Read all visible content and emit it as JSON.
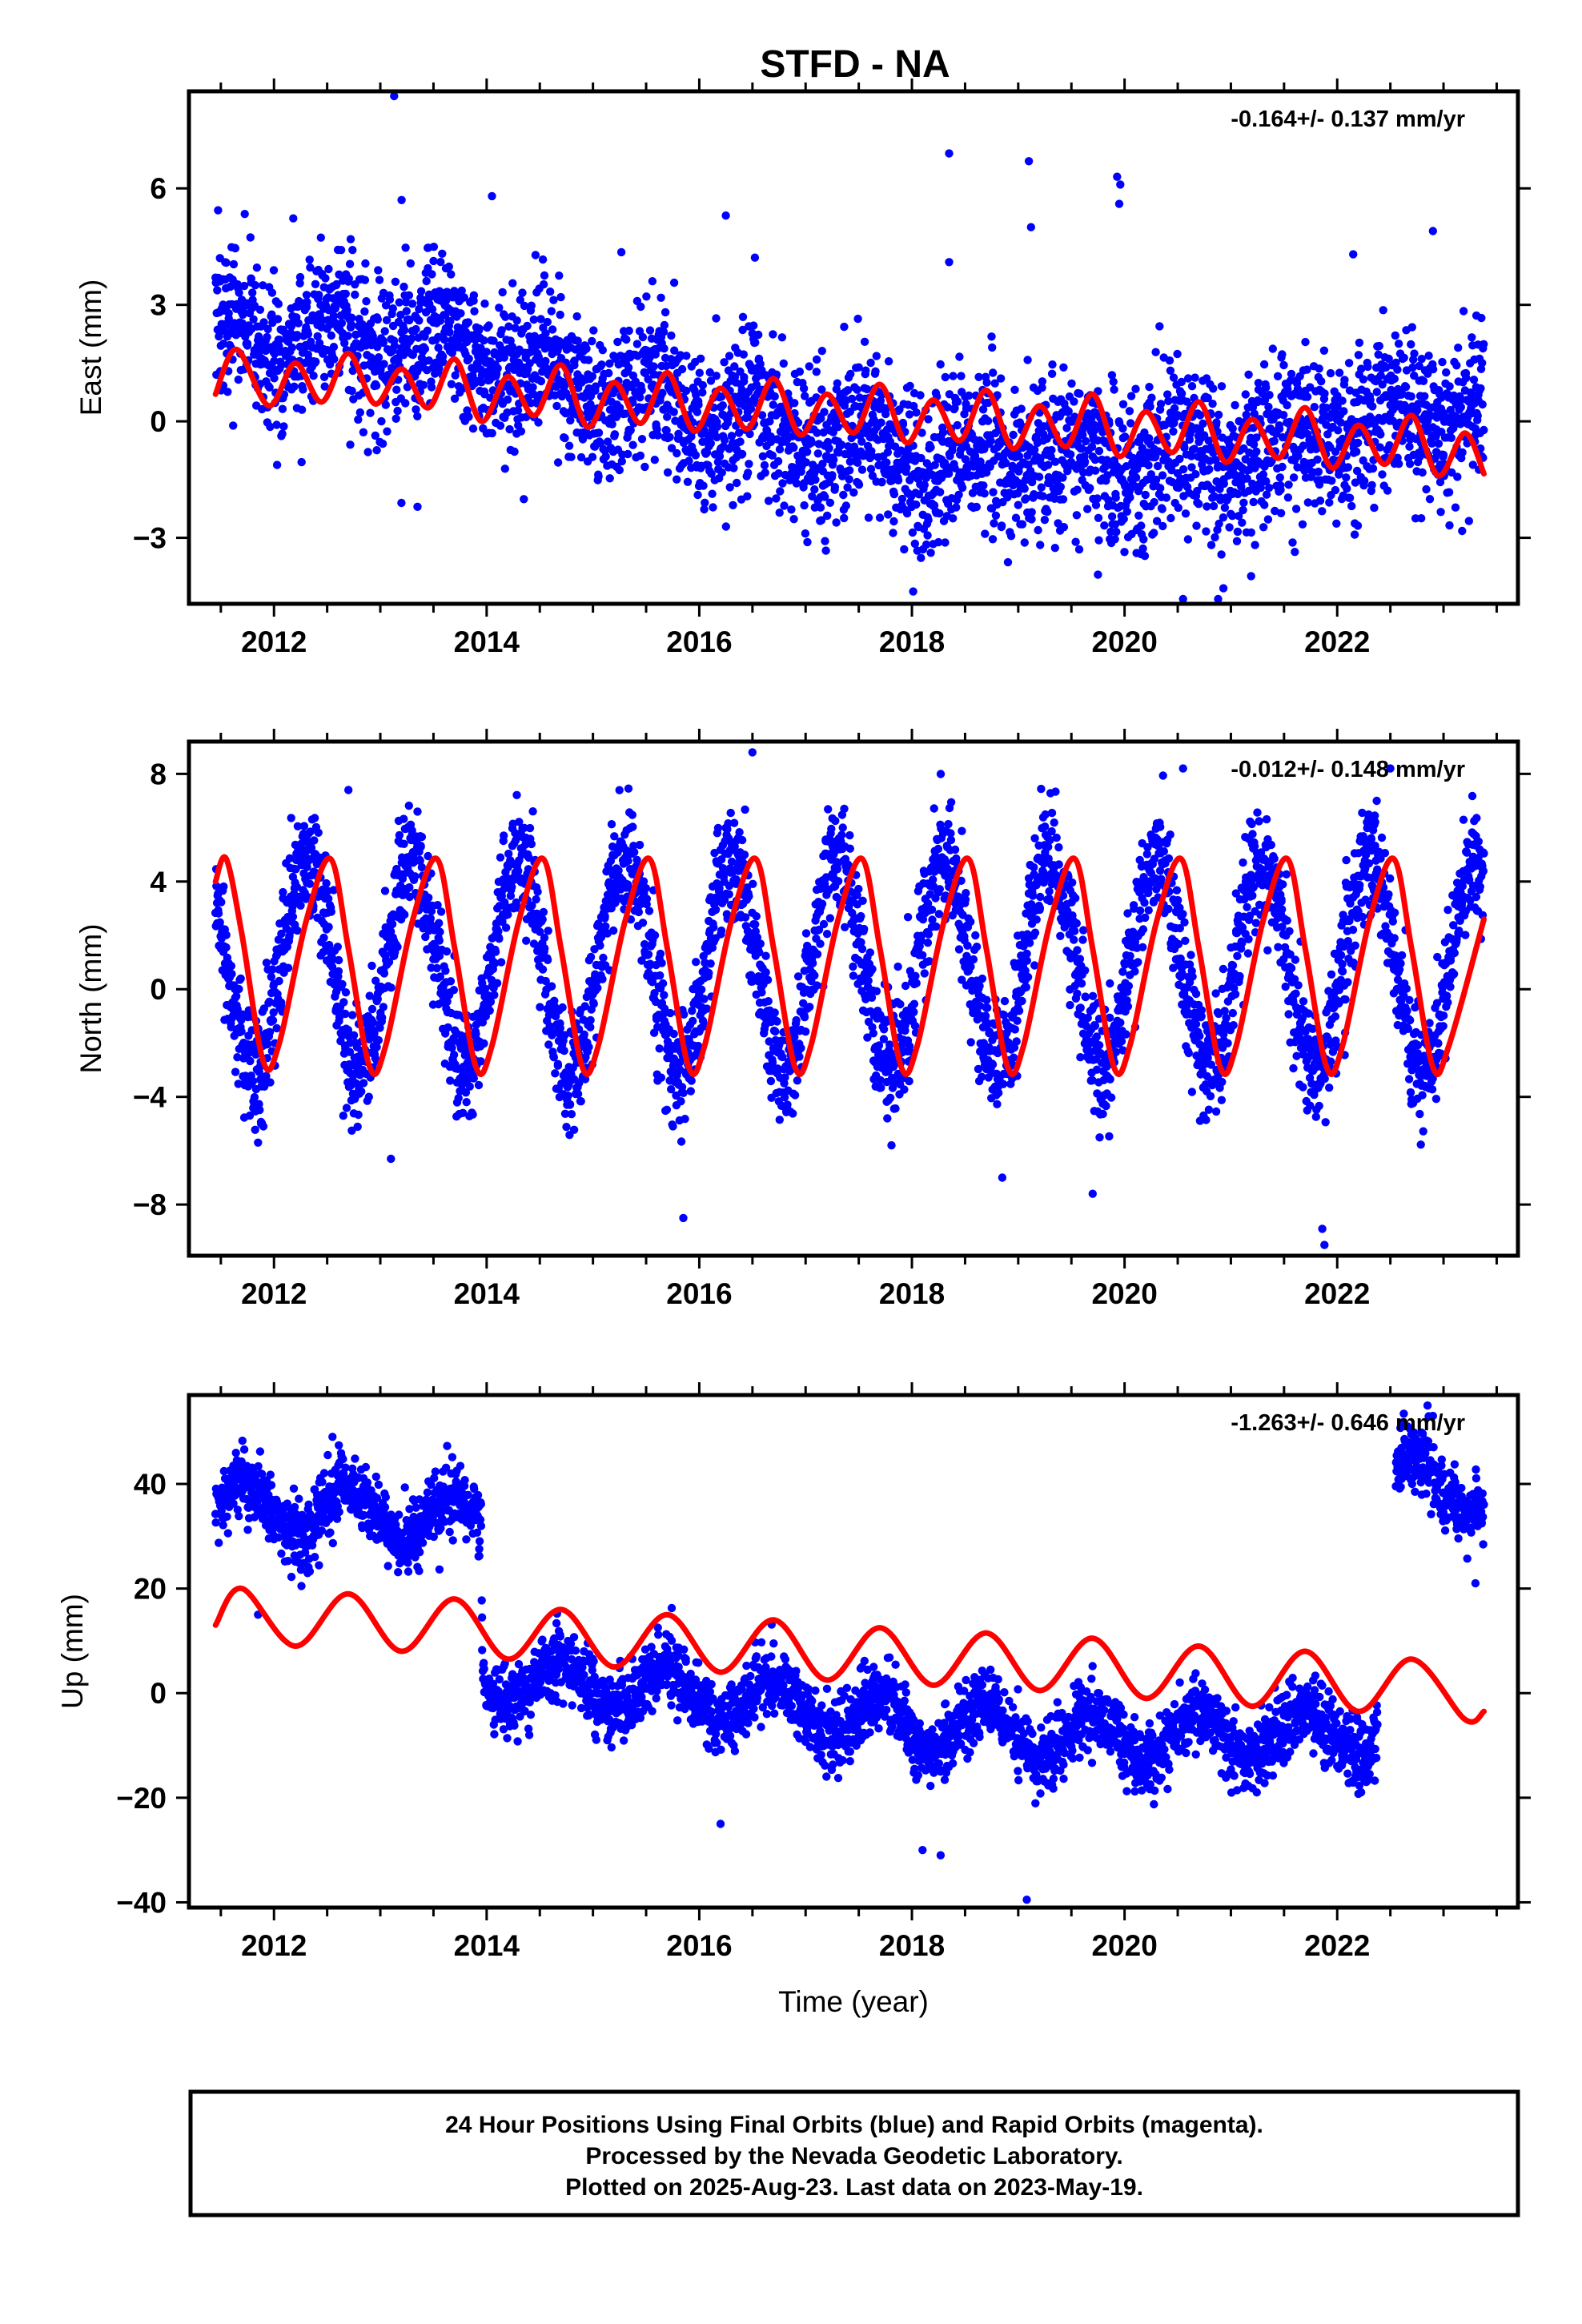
{
  "title": "STFD - NA",
  "colors": {
    "points": "#0000ff",
    "model": "#ff0000",
    "frame": "#000000"
  },
  "chart_data": [
    {
      "type": "scatter",
      "panel": "east",
      "ylabel": "East (mm)",
      "xlim": [
        2011.2,
        2023.7
      ],
      "ylim": [
        -4.7,
        8.5
      ],
      "yticks": [
        6,
        3,
        0,
        -3
      ],
      "ytick_labels": [
        "6",
        "3",
        "0",
        "−3"
      ],
      "xticks": [
        2012,
        2014,
        2016,
        2018,
        2020,
        2022
      ],
      "xtick_labels": [
        "2012",
        "2014",
        "2016",
        "2018",
        "2020",
        "2022"
      ],
      "rate_label": "-0.164+/- 0.137 mm/yr",
      "data_range": [
        2011.45,
        2023.38
      ],
      "trend": [
        {
          "x": 2011.5,
          "y": 2.2
        },
        {
          "x": 2013.5,
          "y": 2.0
        },
        {
          "x": 2015.0,
          "y": 0.9
        },
        {
          "x": 2016.0,
          "y": 0.3
        },
        {
          "x": 2017.0,
          "y": -0.3
        },
        {
          "x": 2018.0,
          "y": -0.9
        },
        {
          "x": 2020.0,
          "y": -1.0
        },
        {
          "x": 2021.0,
          "y": -0.9
        },
        {
          "x": 2022.0,
          "y": -0.1
        },
        {
          "x": 2023.4,
          "y": 0.3
        }
      ],
      "seasonal_amp": 0.5,
      "seasonal_phase": 0.55,
      "scatter_sd": 1.0,
      "point_count": 3600,
      "model_line": [
        {
          "x": 2011.45,
          "y": 0.7
        },
        {
          "x": 2011.65,
          "y": 1.85
        },
        {
          "x": 2011.95,
          "y": 0.4
        },
        {
          "x": 2012.2,
          "y": 1.5
        },
        {
          "x": 2012.45,
          "y": 0.5
        },
        {
          "x": 2012.7,
          "y": 1.75
        },
        {
          "x": 2012.95,
          "y": 0.45
        },
        {
          "x": 2013.2,
          "y": 1.35
        },
        {
          "x": 2013.45,
          "y": 0.35
        },
        {
          "x": 2013.7,
          "y": 1.6
        },
        {
          "x": 2013.95,
          "y": 0.0
        },
        {
          "x": 2014.2,
          "y": 1.15
        },
        {
          "x": 2014.45,
          "y": 0.15
        },
        {
          "x": 2014.7,
          "y": 1.45
        },
        {
          "x": 2014.95,
          "y": -0.15
        },
        {
          "x": 2015.2,
          "y": 1.0
        },
        {
          "x": 2015.45,
          "y": -0.05
        },
        {
          "x": 2015.7,
          "y": 1.25
        },
        {
          "x": 2015.95,
          "y": -0.25
        },
        {
          "x": 2016.2,
          "y": 0.85
        },
        {
          "x": 2016.45,
          "y": -0.2
        },
        {
          "x": 2016.7,
          "y": 1.1
        },
        {
          "x": 2016.95,
          "y": -0.35
        },
        {
          "x": 2017.2,
          "y": 0.7
        },
        {
          "x": 2017.45,
          "y": -0.3
        },
        {
          "x": 2017.7,
          "y": 0.95
        },
        {
          "x": 2017.95,
          "y": -0.55
        },
        {
          "x": 2018.2,
          "y": 0.55
        },
        {
          "x": 2018.45,
          "y": -0.5
        },
        {
          "x": 2018.7,
          "y": 0.8
        },
        {
          "x": 2018.95,
          "y": -0.7
        },
        {
          "x": 2019.2,
          "y": 0.4
        },
        {
          "x": 2019.45,
          "y": -0.65
        },
        {
          "x": 2019.7,
          "y": 0.7
        },
        {
          "x": 2019.95,
          "y": -0.9
        },
        {
          "x": 2020.2,
          "y": 0.25
        },
        {
          "x": 2020.45,
          "y": -0.8
        },
        {
          "x": 2020.7,
          "y": 0.5
        },
        {
          "x": 2020.95,
          "y": -1.05
        },
        {
          "x": 2021.2,
          "y": 0.05
        },
        {
          "x": 2021.45,
          "y": -0.95
        },
        {
          "x": 2021.7,
          "y": 0.35
        },
        {
          "x": 2021.95,
          "y": -1.2
        },
        {
          "x": 2022.2,
          "y": -0.1
        },
        {
          "x": 2022.45,
          "y": -1.1
        },
        {
          "x": 2022.7,
          "y": 0.15
        },
        {
          "x": 2022.95,
          "y": -1.4
        },
        {
          "x": 2023.2,
          "y": -0.3
        },
        {
          "x": 2023.38,
          "y": -1.35
        }
      ],
      "outliers": [
        {
          "x": 2013.13,
          "y": 8.4
        },
        {
          "x": 2018.35,
          "y": 6.9
        },
        {
          "x": 2019.1,
          "y": 6.7
        },
        {
          "x": 2019.12,
          "y": 5.0
        },
        {
          "x": 2019.93,
          "y": 6.3
        },
        {
          "x": 2019.95,
          "y": 5.6
        },
        {
          "x": 2019.96,
          "y": 6.1
        },
        {
          "x": 2016.25,
          "y": 5.3
        },
        {
          "x": 2018.35,
          "y": 4.1
        },
        {
          "x": 2022.9,
          "y": 4.9
        },
        {
          "x": 2022.15,
          "y": 4.3
        },
        {
          "x": 2013.2,
          "y": 5.7
        },
        {
          "x": 2014.05,
          "y": 5.8
        },
        {
          "x": 2020.55,
          "y": -4.6
        },
        {
          "x": 2020.88,
          "y": -4.65
        },
        {
          "x": 2020.93,
          "y": -4.3
        },
        {
          "x": 2019.75,
          "y": -3.95
        },
        {
          "x": 2013.35,
          "y": -2.2
        }
      ]
    },
    {
      "type": "scatter",
      "panel": "north",
      "ylabel": "North (mm)",
      "xlim": [
        2011.2,
        2023.7
      ],
      "ylim": [
        -9.9,
        9.2
      ],
      "yticks": [
        8,
        4,
        0,
        -4,
        -8
      ],
      "ytick_labels": [
        "8",
        "4",
        "0",
        "−4",
        "−8"
      ],
      "xticks": [
        2012,
        2014,
        2016,
        2018,
        2020,
        2022
      ],
      "xtick_labels": [
        "2012",
        "2014",
        "2016",
        "2018",
        "2020",
        "2022"
      ],
      "rate_label": "-0.012+/- 0.148 mm/yr",
      "data_range": [
        2011.45,
        2023.38
      ],
      "trend": [
        {
          "x": 2011.5,
          "y": 0.9
        },
        {
          "x": 2023.4,
          "y": 0.9
        }
      ],
      "seasonal_amp": 3.9,
      "seasonal_phase": 0.3,
      "scatter_sd": 1.1,
      "point_count": 3600,
      "model_line": [
        {
          "x": 2011.45,
          "y": 4.0
        },
        {
          "x": 2011.55,
          "y": 4.85
        },
        {
          "x": 2011.7,
          "y": 2.0
        },
        {
          "x": 2011.9,
          "y": -2.7
        },
        {
          "x": 2012.05,
          "y": -2.0
        },
        {
          "x": 2012.3,
          "y": 2.5
        },
        {
          "x": 2012.53,
          "y": 4.85
        },
        {
          "x": 2012.7,
          "y": 1.5
        },
        {
          "x": 2012.9,
          "y": -2.9
        },
        {
          "x": 2013.05,
          "y": -2.1
        },
        {
          "x": 2013.3,
          "y": 2.5
        },
        {
          "x": 2013.53,
          "y": 4.85
        },
        {
          "x": 2013.7,
          "y": 1.5
        },
        {
          "x": 2013.9,
          "y": -2.9
        },
        {
          "x": 2014.05,
          "y": -2.1
        },
        {
          "x": 2014.3,
          "y": 2.5
        },
        {
          "x": 2014.53,
          "y": 4.85
        },
        {
          "x": 2014.7,
          "y": 1.5
        },
        {
          "x": 2014.9,
          "y": -2.9
        },
        {
          "x": 2015.05,
          "y": -2.1
        },
        {
          "x": 2015.3,
          "y": 2.5
        },
        {
          "x": 2015.53,
          "y": 4.85
        },
        {
          "x": 2015.7,
          "y": 1.5
        },
        {
          "x": 2015.9,
          "y": -2.9
        },
        {
          "x": 2016.05,
          "y": -2.1
        },
        {
          "x": 2016.3,
          "y": 2.5
        },
        {
          "x": 2016.53,
          "y": 4.85
        },
        {
          "x": 2016.7,
          "y": 1.5
        },
        {
          "x": 2016.9,
          "y": -2.9
        },
        {
          "x": 2017.05,
          "y": -2.1
        },
        {
          "x": 2017.3,
          "y": 2.5
        },
        {
          "x": 2017.53,
          "y": 4.85
        },
        {
          "x": 2017.7,
          "y": 1.5
        },
        {
          "x": 2017.9,
          "y": -2.9
        },
        {
          "x": 2018.05,
          "y": -2.1
        },
        {
          "x": 2018.3,
          "y": 2.5
        },
        {
          "x": 2018.53,
          "y": 4.85
        },
        {
          "x": 2018.7,
          "y": 1.5
        },
        {
          "x": 2018.9,
          "y": -2.9
        },
        {
          "x": 2019.05,
          "y": -2.1
        },
        {
          "x": 2019.3,
          "y": 2.5
        },
        {
          "x": 2019.53,
          "y": 4.85
        },
        {
          "x": 2019.7,
          "y": 1.5
        },
        {
          "x": 2019.9,
          "y": -2.9
        },
        {
          "x": 2020.05,
          "y": -2.1
        },
        {
          "x": 2020.3,
          "y": 2.5
        },
        {
          "x": 2020.53,
          "y": 4.85
        },
        {
          "x": 2020.7,
          "y": 1.5
        },
        {
          "x": 2020.9,
          "y": -2.9
        },
        {
          "x": 2021.05,
          "y": -2.1
        },
        {
          "x": 2021.3,
          "y": 2.5
        },
        {
          "x": 2021.53,
          "y": 4.85
        },
        {
          "x": 2021.7,
          "y": 1.5
        },
        {
          "x": 2021.9,
          "y": -2.9
        },
        {
          "x": 2022.05,
          "y": -2.1
        },
        {
          "x": 2022.3,
          "y": 2.5
        },
        {
          "x": 2022.53,
          "y": 4.85
        },
        {
          "x": 2022.7,
          "y": 1.5
        },
        {
          "x": 2022.9,
          "y": -2.9
        },
        {
          "x": 2023.05,
          "y": -2.1
        },
        {
          "x": 2023.38,
          "y": 2.6
        }
      ],
      "outliers": [
        {
          "x": 2016.5,
          "y": 8.8
        },
        {
          "x": 2015.85,
          "y": -8.5
        },
        {
          "x": 2021.88,
          "y": -9.5
        },
        {
          "x": 2021.86,
          "y": -8.9
        },
        {
          "x": 2013.1,
          "y": -6.3
        },
        {
          "x": 2011.85,
          "y": -5.7
        },
        {
          "x": 2019.7,
          "y": -7.6
        },
        {
          "x": 2018.85,
          "y": -7.0
        },
        {
          "x": 2012.7,
          "y": 7.4
        },
        {
          "x": 2022.5,
          "y": 8.2
        },
        {
          "x": 2020.55,
          "y": 8.2
        }
      ]
    },
    {
      "type": "scatter",
      "panel": "up",
      "ylabel": "Up (mm)",
      "xlabel": "Time (year)",
      "xlim": [
        2011.2,
        2023.7
      ],
      "ylim": [
        -41,
        57
      ],
      "yticks": [
        40,
        20,
        0,
        -20,
        -40
      ],
      "ytick_labels": [
        "40",
        "20",
        "0",
        "−20",
        "−40"
      ],
      "xticks": [
        2012,
        2014,
        2016,
        2018,
        2020,
        2022
      ],
      "xtick_labels": [
        "2012",
        "2014",
        "2016",
        "2018",
        "2020",
        "2022"
      ],
      "rate_label": "-1.263+/- 0.646 mm/yr",
      "data_range": [
        2011.45,
        2023.38
      ],
      "gaps": [
        [
          2022.38,
          2022.55
        ]
      ],
      "trend": [
        {
          "x": 2011.45,
          "y": 36
        },
        {
          "x": 2013.95,
          "y": 33
        },
        {
          "x": 2013.96,
          "y": 3
        },
        {
          "x": 2016.0,
          "y": 0
        },
        {
          "x": 2018.0,
          "y": -6
        },
        {
          "x": 2020.0,
          "y": -9
        },
        {
          "x": 2022.37,
          "y": -7
        },
        {
          "x": 2022.55,
          "y": 42
        },
        {
          "x": 2023.38,
          "y": 38
        }
      ],
      "seasonal_amp": 4.5,
      "seasonal_phase": 0.7,
      "scatter_sd": 3.3,
      "point_count": 3600,
      "model_line": [
        {
          "x": 2011.45,
          "y": 13
        },
        {
          "x": 2011.7,
          "y": 20
        },
        {
          "x": 2012.2,
          "y": 9
        },
        {
          "x": 2012.7,
          "y": 19
        },
        {
          "x": 2013.2,
          "y": 8
        },
        {
          "x": 2013.7,
          "y": 18
        },
        {
          "x": 2014.2,
          "y": 6.5
        },
        {
          "x": 2014.7,
          "y": 16
        },
        {
          "x": 2015.2,
          "y": 5
        },
        {
          "x": 2015.7,
          "y": 15
        },
        {
          "x": 2016.2,
          "y": 4
        },
        {
          "x": 2016.7,
          "y": 14
        },
        {
          "x": 2017.2,
          "y": 2.5
        },
        {
          "x": 2017.7,
          "y": 12.5
        },
        {
          "x": 2018.2,
          "y": 1.5
        },
        {
          "x": 2018.7,
          "y": 11.5
        },
        {
          "x": 2019.2,
          "y": 0.5
        },
        {
          "x": 2019.7,
          "y": 10.5
        },
        {
          "x": 2020.2,
          "y": -1
        },
        {
          "x": 2020.7,
          "y": 9
        },
        {
          "x": 2021.2,
          "y": -2.5
        },
        {
          "x": 2021.7,
          "y": 8
        },
        {
          "x": 2022.2,
          "y": -3.5
        },
        {
          "x": 2022.7,
          "y": 6.5
        },
        {
          "x": 2023.2,
          "y": -5
        },
        {
          "x": 2023.38,
          "y": -3.5
        }
      ],
      "outliers": [
        {
          "x": 2019.08,
          "y": -39.5
        },
        {
          "x": 2018.1,
          "y": -30
        },
        {
          "x": 2018.27,
          "y": -31
        },
        {
          "x": 2016.2,
          "y": -25
        },
        {
          "x": 2022.85,
          "y": 55
        },
        {
          "x": 2022.9,
          "y": 53
        },
        {
          "x": 2023.3,
          "y": 21
        },
        {
          "x": 2011.85,
          "y": 15
        },
        {
          "x": 2012.55,
          "y": 49
        }
      ]
    }
  ],
  "footer": {
    "line1": "24 Hour Positions Using Final Orbits (blue) and Rapid Orbits (magenta).",
    "line2": "Processed by the Nevada Geodetic Laboratory.",
    "line3": "Plotted on 2025-Aug-23. Last data on 2023-May-19."
  }
}
